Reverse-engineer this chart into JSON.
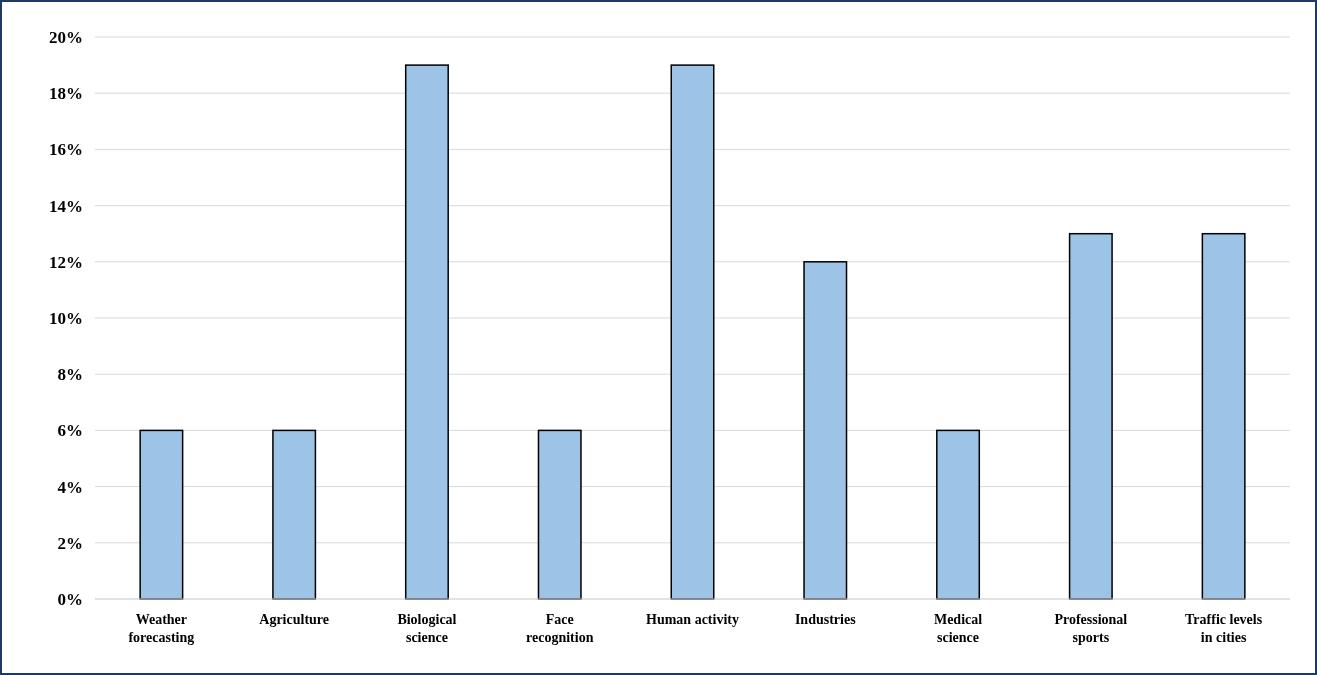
{
  "chart_data": {
    "type": "bar",
    "categories": [
      "Weather forecasting",
      "Agriculture",
      "Biological science",
      "Face recognition",
      "Human activity",
      "Industries",
      "Medical science",
      "Professional sports",
      "Traffic levels in cities"
    ],
    "values": [
      6,
      6,
      19,
      6,
      19,
      12,
      6,
      13,
      13
    ],
    "color": "#9dc3e6",
    "ylim": [
      0,
      20
    ],
    "yticks": [
      {
        "value": 0,
        "label": "0%"
      },
      {
        "value": 2,
        "label": "2%"
      },
      {
        "value": 4,
        "label": "4%"
      },
      {
        "value": 6,
        "label": "6%"
      },
      {
        "value": 8,
        "label": "8%"
      },
      {
        "value": 10,
        "label": "10%"
      },
      {
        "value": 12,
        "label": "12%"
      },
      {
        "value": 14,
        "label": "14%"
      },
      {
        "value": 16,
        "label": "16%"
      },
      {
        "value": 18,
        "label": "18%"
      },
      {
        "value": 20,
        "label": "20%"
      }
    ],
    "grid": "y"
  }
}
